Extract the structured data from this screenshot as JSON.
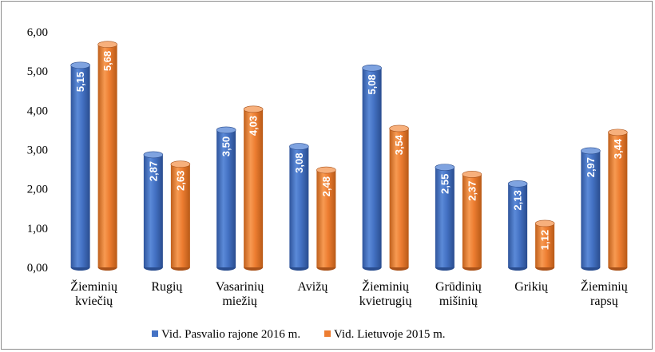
{
  "chart_data": {
    "type": "bar",
    "style": "3d-cylinder",
    "categories": [
      [
        "Žieminių",
        "kviečių"
      ],
      [
        "Rugių"
      ],
      [
        "Vasarinių",
        "miežių"
      ],
      [
        "Avižų"
      ],
      [
        "Žieminių",
        "kvietrugių"
      ],
      [
        "Grūdinių",
        "mišinių"
      ],
      [
        "Grikių"
      ],
      [
        "Žieminių",
        "rapsų"
      ]
    ],
    "series": [
      {
        "name": "Vid. Pasvalio rajone  2016 m.",
        "color": "#4472c4",
        "values": [
          5.15,
          2.87,
          3.5,
          3.08,
          5.08,
          2.55,
          2.13,
          2.97
        ],
        "labels": [
          "5,15",
          "2,87",
          "3,50",
          "3,08",
          "5,08",
          "2,55",
          "2,13",
          "2,97"
        ]
      },
      {
        "name": "Vid. Lietuvoje  2015 m.",
        "color": "#ed7d31",
        "values": [
          5.68,
          2.63,
          4.03,
          2.48,
          3.54,
          2.37,
          1.12,
          3.44
        ],
        "labels": [
          "5,68",
          "2,63",
          "4,03",
          "2,48",
          "3,54",
          "2,37",
          "1,12",
          "3,44"
        ]
      }
    ],
    "yticks": [
      "0,00",
      "1,00",
      "2,00",
      "3,00",
      "4,00",
      "5,00",
      "6,00"
    ],
    "ylim": [
      0,
      6
    ],
    "grid": false,
    "legend_position": "bottom",
    "title": "",
    "xlabel": "",
    "ylabel": ""
  }
}
